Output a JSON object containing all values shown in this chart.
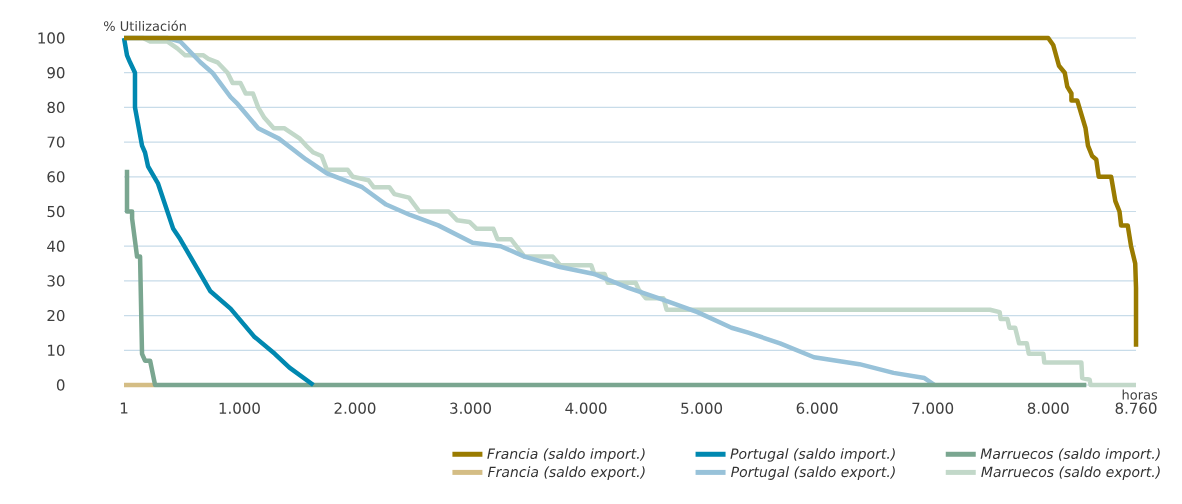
{
  "chart_data": {
    "type": "line",
    "ylabel": "% Utilización",
    "xlabel": "horas",
    "xlim": [
      1,
      8760
    ],
    "ylim": [
      0,
      100
    ],
    "xticks": [
      1,
      {
        "value": 1000,
        "label": "1.000"
      },
      {
        "value": 2000,
        "label": "2.000"
      },
      {
        "value": 3000,
        "label": "3.000"
      },
      {
        "value": 4000,
        "label": "4.000"
      },
      {
        "value": 5000,
        "label": "5.000"
      },
      {
        "value": 6000,
        "label": "6.000"
      },
      {
        "value": 7000,
        "label": "7.000"
      },
      {
        "value": 8000,
        "label": "8.000"
      },
      {
        "value": 8760,
        "label": "8.760"
      }
    ],
    "yticks": [
      0,
      10,
      20,
      30,
      40,
      50,
      60,
      70,
      80,
      90,
      100
    ],
    "grid": "y",
    "legend": "bottom right",
    "series": [
      {
        "name": "Francia (saldo import.)",
        "color": "#9a7b00",
        "x": [
          1,
          8000,
          8043,
          8093,
          8143,
          8165,
          8201,
          8201,
          8251,
          8287,
          8323,
          8344,
          8380,
          8416,
          8437,
          8545,
          8581,
          8617,
          8631,
          8688,
          8717,
          8753,
          8760,
          8760
        ],
        "values": [
          100,
          100,
          98,
          92,
          90,
          86,
          84,
          82,
          82,
          78,
          74,
          69,
          66,
          65,
          60,
          60,
          53,
          50,
          46,
          46,
          40,
          35,
          28,
          11
        ]
      },
      {
        "name": "Portugal (saldo import.)",
        "color": "#0088b0",
        "x": [
          1,
          27,
          53,
          96,
          96,
          157,
          183,
          209,
          296,
          427,
          488,
          679,
          749,
          923,
          1126,
          1306,
          1433,
          1640
        ],
        "values": [
          100,
          95,
          93,
          90,
          80,
          69,
          67,
          63,
          58,
          45,
          42,
          31,
          27,
          22,
          14,
          9,
          5,
          0
        ]
      },
      {
        "name": "Marruecos (saldo import.)",
        "color": "#7aa690",
        "x": [
          27,
          27,
          71,
          71,
          114,
          140,
          157,
          183,
          227,
          270,
          8330
        ],
        "values": [
          62,
          50,
          50,
          48,
          37,
          37,
          9,
          7,
          7,
          0,
          0
        ]
      },
      {
        "name": "Francia (saldo export.)",
        "color": "#d4bd85",
        "x": [
          1,
          270
        ],
        "values": [
          0,
          0
        ]
      },
      {
        "name": "Portugal (saldo export.)",
        "color": "#98c2d9",
        "x": [
          1,
          375,
          488,
          662,
          766,
          923,
          984,
          1162,
          1342,
          1459,
          1577,
          1757,
          2063,
          2270,
          2477,
          2721,
          3018,
          3261,
          3468,
          3775,
          4071,
          4366,
          4670,
          4964,
          5259,
          5411,
          5679,
          5973,
          6366,
          6661,
          6929,
          7017
        ],
        "values": [
          100,
          100,
          99,
          93,
          90,
          83,
          81,
          74,
          71,
          68,
          65,
          61,
          57,
          52,
          49,
          46,
          41,
          40,
          37,
          34,
          32,
          28,
          24.5,
          21,
          16.5,
          15,
          12,
          8,
          6,
          3.5,
          2,
          0
        ]
      },
      {
        "name": "Marruecos (saldo export.)",
        "color": "#c2d8c9",
        "x": [
          1,
          166,
          227,
          375,
          462,
          531,
          688,
          731,
          810,
          897,
          941,
          1009,
          1054,
          1117,
          1162,
          1216,
          1297,
          1387,
          1432,
          1523,
          1577,
          1640,
          1712,
          1757,
          1937,
          1982,
          2117,
          2162,
          2297,
          2342,
          2468,
          2513,
          2558,
          2811,
          2883,
          2991,
          3054,
          3198,
          3234,
          3351,
          3396,
          3468,
          3712,
          3775,
          4045,
          4071,
          4161,
          4187,
          4429,
          4456,
          4518,
          4670,
          4697,
          7496,
          7580,
          7588,
          7647,
          7664,
          7714,
          7748,
          7815,
          7832,
          7958,
          7966,
          8287,
          8294,
          8359,
          8366,
          8760
        ],
        "values": [
          100,
          100,
          99,
          99,
          97,
          95,
          95,
          94,
          93,
          90,
          87,
          87,
          84,
          84,
          80,
          77,
          74,
          74,
          73,
          71,
          69,
          67,
          66,
          62,
          62,
          60,
          59,
          57,
          57,
          55,
          54,
          52,
          50,
          50,
          47.5,
          47,
          45,
          45,
          42,
          42,
          40,
          37,
          37,
          34.5,
          34.5,
          32,
          32,
          29.5,
          29.5,
          27.5,
          25,
          25,
          21.7,
          21.7,
          21,
          19,
          19,
          16.5,
          16.5,
          12,
          12,
          9,
          9,
          6.5,
          6.5,
          2,
          1.5,
          0,
          0
        ]
      }
    ]
  }
}
